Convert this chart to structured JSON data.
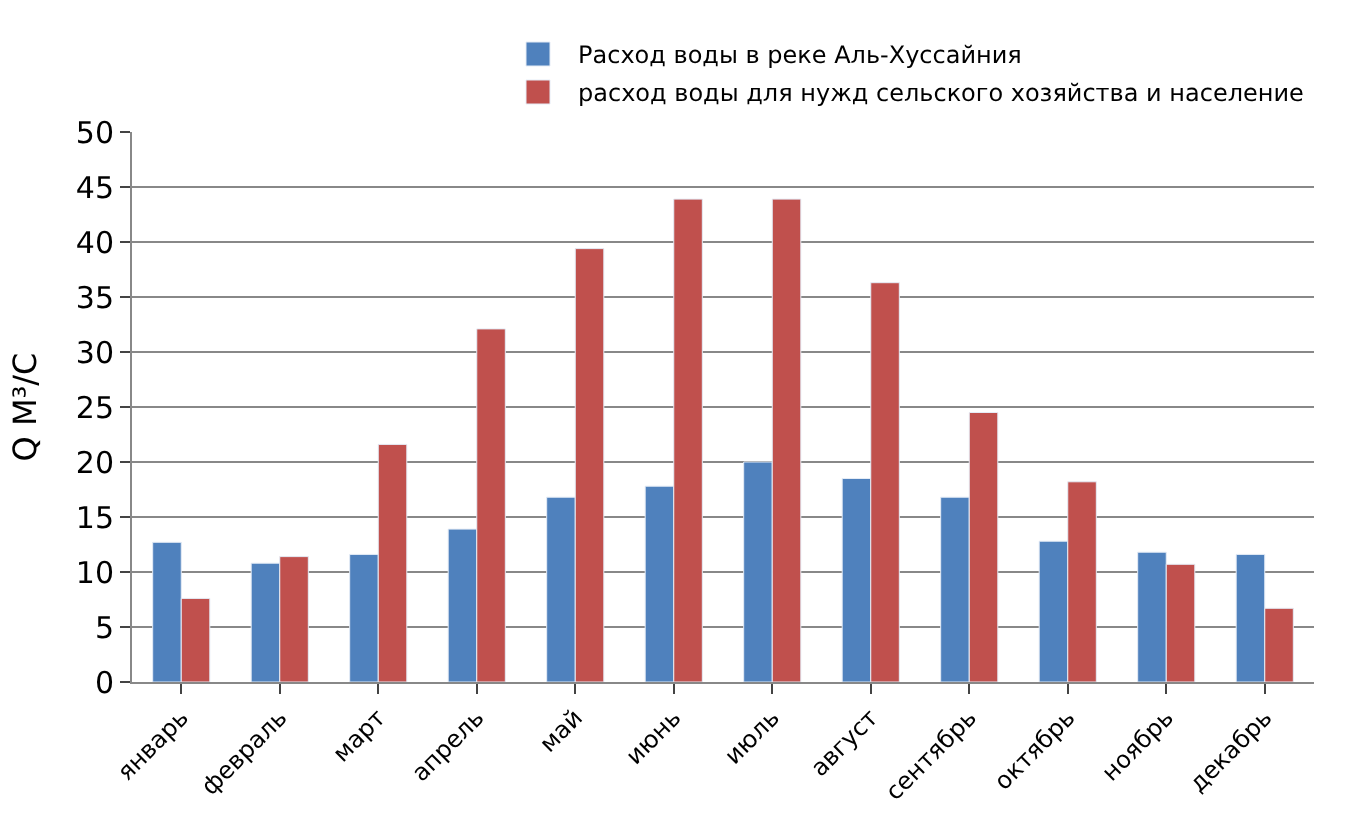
{
  "chart_data": {
    "type": "bar",
    "ylabel": "Q М³/С",
    "categories": [
      "январь",
      "февраль",
      "март",
      "апрель",
      "май",
      "июнь",
      "июль",
      "август",
      "сентябрь",
      "октябрь",
      "ноябрь",
      "декабрь"
    ],
    "series": [
      {
        "name": "Расход воды в реке Аль-Хуссайния",
        "color": "#4f81bd",
        "values": [
          12.7,
          10.8,
          11.6,
          13.9,
          16.8,
          17.8,
          20.0,
          18.5,
          16.8,
          12.8,
          11.8,
          11.6
        ]
      },
      {
        "name": "расход воды для нужд сельского хозяйства и население",
        "color": "#c0504d",
        "values": [
          7.6,
          11.4,
          21.6,
          32.1,
          39.4,
          43.9,
          43.9,
          36.3,
          24.5,
          18.2,
          10.7,
          6.7
        ]
      }
    ],
    "ylim": [
      0,
      50
    ],
    "yticks": [
      0,
      5,
      10,
      15,
      20,
      25,
      30,
      35,
      40,
      45,
      50
    ],
    "grid": "y",
    "legend": "top right"
  }
}
